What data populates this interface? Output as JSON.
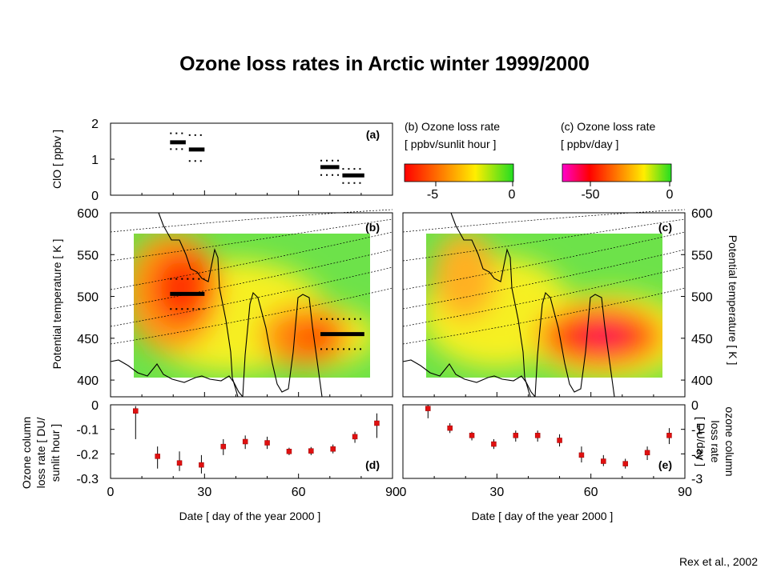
{
  "title": "Ozone loss rates in Arctic winter 1999/2000",
  "credit": "Rex et al., 2002",
  "chart_data": [
    {
      "id": "a",
      "type": "scatter",
      "panel_label": "(a)",
      "ylabel": "ClO [ ppbv ]",
      "ylim": [
        0,
        2
      ],
      "yticks": [
        "0",
        "1",
        "2"
      ],
      "xlim": [
        0,
        90
      ],
      "segments": [
        {
          "x0": 19,
          "x1": 24,
          "y": 1.47,
          "lo": 1.28,
          "hi": 1.72
        },
        {
          "x0": 25,
          "x1": 30,
          "y": 1.27,
          "lo": 0.95,
          "hi": 1.67
        },
        {
          "x0": 67,
          "x1": 73,
          "y": 0.78,
          "lo": 0.56,
          "hi": 0.96
        },
        {
          "x0": 74,
          "x1": 81,
          "y": 0.55,
          "lo": 0.34,
          "hi": 0.73
        }
      ]
    },
    {
      "id": "b",
      "type": "heatmap",
      "panel_label": "(b)",
      "colorbar_label": [
        "(b) Ozone loss rate",
        "[ ppbv/sunlit hour ]"
      ],
      "colorbar_ticks": [
        "-5",
        "0"
      ],
      "ylabel": "Potential temperature [ K ]",
      "ylim": [
        380,
        600
      ],
      "yticks": [
        "400",
        "450",
        "500",
        "550",
        "600"
      ],
      "xlim": [
        0,
        90
      ],
      "segments": [
        {
          "x0": 19,
          "x1": 30,
          "y": 503,
          "lo": 485,
          "hi": 521
        },
        {
          "x0": 67,
          "x1": 81,
          "y": 455,
          "lo": 437,
          "hi": 473
        }
      ]
    },
    {
      "id": "c",
      "type": "heatmap",
      "panel_label": "(c)",
      "colorbar_label": [
        "(c) Ozone loss rate",
        "[ ppbv/day ]"
      ],
      "colorbar_ticks": [
        "-50",
        "0"
      ],
      "ylabel": "Potential temperature [ K ]",
      "ylim": [
        380,
        600
      ],
      "yticks": [
        "400",
        "450",
        "500",
        "550",
        "600"
      ],
      "xlim": [
        0,
        90
      ]
    },
    {
      "id": "d",
      "type": "scatter",
      "panel_label": "(d)",
      "ylabel": [
        "Ozone column",
        "loss rate [ DU/",
        "sunlit hour ]"
      ],
      "xlabel": "Date [  day of the year 2000 ]",
      "xticks": [
        "0",
        "30",
        "60",
        "90"
      ],
      "ylim": [
        -0.3,
        0
      ],
      "yticks": [
        "0",
        "-0.1",
        "-0.2",
        "-0.3"
      ],
      "points": [
        {
          "x": 8,
          "y": -0.025,
          "lo": -0.14,
          "hi": -0.005
        },
        {
          "x": 15,
          "y": -0.21,
          "lo": -0.26,
          "hi": -0.17
        },
        {
          "x": 22,
          "y": -0.237,
          "lo": -0.27,
          "hi": -0.19
        },
        {
          "x": 29,
          "y": -0.245,
          "lo": -0.28,
          "hi": -0.205
        },
        {
          "x": 36,
          "y": -0.17,
          "lo": -0.205,
          "hi": -0.14
        },
        {
          "x": 43,
          "y": -0.15,
          "lo": -0.18,
          "hi": -0.125
        },
        {
          "x": 50,
          "y": -0.155,
          "lo": -0.18,
          "hi": -0.13
        },
        {
          "x": 57,
          "y": -0.19,
          "lo": -0.205,
          "hi": -0.175
        },
        {
          "x": 64,
          "y": -0.188,
          "lo": -0.205,
          "hi": -0.172
        },
        {
          "x": 71,
          "y": -0.18,
          "lo": -0.198,
          "hi": -0.162
        },
        {
          "x": 78,
          "y": -0.13,
          "lo": -0.155,
          "hi": -0.11
        },
        {
          "x": 85,
          "y": -0.075,
          "lo": -0.135,
          "hi": -0.035
        }
      ]
    },
    {
      "id": "e",
      "type": "scatter",
      "panel_label": "(e)",
      "ylabel": [
        "ozone column",
        "loss rate",
        "[ DU/day ]"
      ],
      "xlabel": "Date [  day of the year 2000 ]",
      "xticks": [
        "0",
        "30",
        "60",
        "90"
      ],
      "ylim": [
        -3,
        0
      ],
      "yticks": [
        "0",
        "-1",
        "-2",
        "-3"
      ],
      "points": [
        {
          "x": 8,
          "y": -0.15,
          "lo": -0.55,
          "hi": 0.0
        },
        {
          "x": 15,
          "y": -0.95,
          "lo": -1.15,
          "hi": -0.75
        },
        {
          "x": 22,
          "y": -1.25,
          "lo": -1.45,
          "hi": -1.1
        },
        {
          "x": 29,
          "y": -1.6,
          "lo": -1.8,
          "hi": -1.4
        },
        {
          "x": 36,
          "y": -1.25,
          "lo": -1.5,
          "hi": -1.05
        },
        {
          "x": 43,
          "y": -1.25,
          "lo": -1.5,
          "hi": -1.05
        },
        {
          "x": 50,
          "y": -1.45,
          "lo": -1.7,
          "hi": -1.2
        },
        {
          "x": 57,
          "y": -2.05,
          "lo": -2.35,
          "hi": -1.7
        },
        {
          "x": 64,
          "y": -2.3,
          "lo": -2.5,
          "hi": -2.05
        },
        {
          "x": 71,
          "y": -2.4,
          "lo": -2.6,
          "hi": -2.2
        },
        {
          "x": 78,
          "y": -1.95,
          "lo": -2.25,
          "hi": -1.7
        },
        {
          "x": 85,
          "y": -1.25,
          "lo": -1.6,
          "hi": -0.95
        }
      ]
    }
  ]
}
